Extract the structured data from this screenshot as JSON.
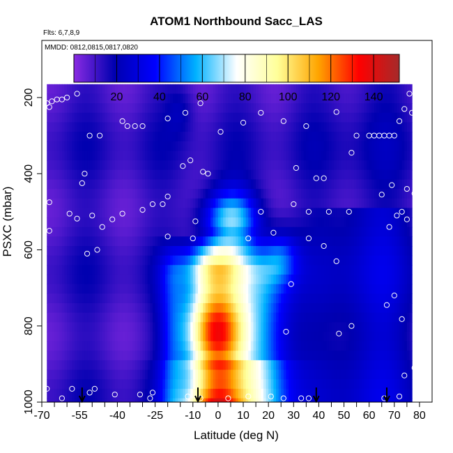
{
  "chart_data": {
    "type": "heatmap",
    "title": "ATOM1 Northbound Sacc_LAS",
    "flights_label": "Flts: 6,7,8,9",
    "dates_label": "MMDD: 0812,0815,0817,0820",
    "xlabel": "Latitude (deg N)",
    "ylabel": "PSXC (mbar)",
    "xlim": [
      -70,
      85
    ],
    "ylim": [
      1000,
      50
    ],
    "x_ticks": [
      -70,
      -55,
      -40,
      -25,
      -10,
      0,
      10,
      20,
      30,
      40,
      50,
      60,
      70,
      80
    ],
    "x_tick_labels": [
      "-70",
      "-55",
      "-40",
      "-25",
      "-10",
      "0",
      "10",
      "20",
      "30",
      "40",
      "50",
      "60",
      "70",
      "80"
    ],
    "y_ticks": [
      200,
      400,
      600,
      800,
      1000
    ],
    "y_tick_labels": [
      "200",
      "400",
      "600",
      "800",
      "1000"
    ],
    "colorbar": {
      "ticks": [
        20,
        40,
        60,
        80,
        100,
        120,
        140
      ],
      "tick_labels": [
        "20",
        "40",
        "60",
        "80",
        "100",
        "120",
        "140"
      ],
      "range": [
        0,
        152
      ],
      "colors": [
        "#8a2be2",
        "#0000b0",
        "#0000ff",
        "#00b2ff",
        "#ffffff",
        "#ffff99",
        "#ffa500",
        "#ff0000",
        "#a52a2a"
      ]
    },
    "lat_range": [
      -68,
      77
    ],
    "pressure_range": [
      165,
      1000
    ],
    "value_field_description": "Heatmap: values peak (~130-150) between -10 and 15 deg N at 600-1000 mbar; ~60-100 in a plume extending up to ~550 mbar near 0-20 deg N; values ~10-25 elsewhere",
    "arrows_lat": [
      -54,
      -8,
      39,
      67
    ],
    "sample_points": [
      [
        -68,
        215
      ],
      [
        -67,
        225
      ],
      [
        -66,
        210
      ],
      [
        -64,
        205
      ],
      [
        -62,
        205
      ],
      [
        -60,
        200
      ],
      [
        -56,
        190
      ],
      [
        -38,
        262
      ],
      [
        -36,
        275
      ],
      [
        -33,
        275
      ],
      [
        -30,
        275
      ],
      [
        -20,
        255
      ],
      [
        -13,
        240
      ],
      [
        -7,
        215
      ],
      [
        1,
        290
      ],
      [
        10,
        266
      ],
      [
        17,
        240
      ],
      [
        26,
        262
      ],
      [
        35,
        275
      ],
      [
        47,
        238
      ],
      [
        55,
        300
      ],
      [
        60,
        300
      ],
      [
        62,
        300
      ],
      [
        64,
        300
      ],
      [
        66,
        300
      ],
      [
        68,
        300
      ],
      [
        70,
        300
      ],
      [
        72,
        262
      ],
      [
        74,
        230
      ],
      [
        76,
        190
      ],
      [
        77,
        240
      ],
      [
        -51,
        300
      ],
      [
        -47,
        300
      ],
      [
        -53,
        400
      ],
      [
        -14,
        380
      ],
      [
        -11,
        365
      ],
      [
        -4,
        400
      ],
      [
        -6,
        395
      ],
      [
        31,
        385
      ],
      [
        39,
        412
      ],
      [
        42,
        412
      ],
      [
        53,
        345
      ],
      [
        69,
        430
      ],
      [
        75,
        440
      ],
      [
        78,
        452
      ],
      [
        -67,
        475
      ],
      [
        -54,
        425
      ],
      [
        -59,
        505
      ],
      [
        -56,
        518
      ],
      [
        -50,
        510
      ],
      [
        -46,
        540
      ],
      [
        -42,
        520
      ],
      [
        -38,
        505
      ],
      [
        -30,
        495
      ],
      [
        -26,
        480
      ],
      [
        -20,
        460
      ],
      [
        -22,
        480
      ],
      [
        -9,
        525
      ],
      [
        17,
        500
      ],
      [
        30,
        480
      ],
      [
        36,
        500
      ],
      [
        44,
        500
      ],
      [
        52,
        500
      ],
      [
        65,
        455
      ],
      [
        68,
        540
      ],
      [
        71,
        510
      ],
      [
        73,
        500
      ],
      [
        75,
        520
      ],
      [
        -67,
        550
      ],
      [
        -52,
        610
      ],
      [
        -48,
        600
      ],
      [
        -20,
        565
      ],
      [
        -10,
        570
      ],
      [
        12,
        570
      ],
      [
        22,
        555
      ],
      [
        36,
        570
      ],
      [
        42,
        590
      ],
      [
        47,
        630
      ],
      [
        29,
        690
      ],
      [
        70,
        720
      ],
      [
        67,
        745
      ],
      [
        73,
        782
      ],
      [
        53,
        800
      ],
      [
        48,
        820
      ],
      [
        27,
        815
      ],
      [
        78,
        910
      ],
      [
        74,
        930
      ],
      [
        -68,
        965
      ],
      [
        -62,
        990
      ],
      [
        -58,
        965
      ],
      [
        -51,
        975
      ],
      [
        -49,
        965
      ],
      [
        -41,
        980
      ],
      [
        -31,
        980
      ],
      [
        -27,
        990
      ],
      [
        -26,
        975
      ],
      [
        -12,
        985
      ],
      [
        -7,
        990
      ],
      [
        4,
        990
      ],
      [
        12,
        985
      ],
      [
        21,
        985
      ],
      [
        26,
        990
      ],
      [
        33,
        990
      ],
      [
        36,
        990
      ],
      [
        66,
        990
      ],
      [
        72,
        985
      ]
    ]
  }
}
